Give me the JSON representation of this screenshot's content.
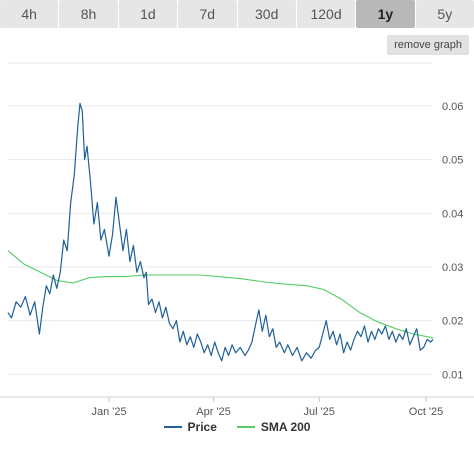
{
  "tabs": [
    {
      "label": "4h",
      "active": false
    },
    {
      "label": "8h",
      "active": false
    },
    {
      "label": "1d",
      "active": false
    },
    {
      "label": "7d",
      "active": false
    },
    {
      "label": "30d",
      "active": false
    },
    {
      "label": "120d",
      "active": false
    },
    {
      "label": "1y",
      "active": true
    },
    {
      "label": "5y",
      "active": false
    }
  ],
  "remove_graph_label": "remove graph",
  "colors": {
    "price": "#1f5f9a",
    "sma": "#55cc66",
    "grid": "#e9e9e9",
    "tick": "#555555"
  },
  "chart_data": {
    "type": "line",
    "title": "",
    "xlabel": "",
    "ylabel": "",
    "xlim": [
      "2024-10-06",
      "2025-10-07"
    ],
    "ylim": [
      0.008,
      0.068
    ],
    "y_ticks": [
      0.01,
      0.02,
      0.03,
      0.04,
      0.05,
      0.06
    ],
    "y_tick_labels": [
      "0.01",
      "0.02",
      "0.03",
      "0.04",
      "0.05",
      "0.06"
    ],
    "x_ticks": [
      "2025-01-01",
      "2025-04-01",
      "2025-07-01",
      "2025-10-01"
    ],
    "x_tick_labels": [
      "Jan '25",
      "Apr '25",
      "Jul '25",
      "Oct '25"
    ],
    "grid": true,
    "legend_position": "bottom-center",
    "series": [
      {
        "name": "Price",
        "points": [
          [
            "2024-10-06",
            0.0215
          ],
          [
            "2024-10-09",
            0.0205
          ],
          [
            "2024-10-13",
            0.0235
          ],
          [
            "2024-10-17",
            0.0225
          ],
          [
            "2024-10-21",
            0.0245
          ],
          [
            "2024-10-25",
            0.021
          ],
          [
            "2024-10-29",
            0.0235
          ],
          [
            "2024-11-02",
            0.0175
          ],
          [
            "2024-11-05",
            0.0225
          ],
          [
            "2024-11-08",
            0.0265
          ],
          [
            "2024-11-11",
            0.025
          ],
          [
            "2024-11-14",
            0.0285
          ],
          [
            "2024-11-17",
            0.026
          ],
          [
            "2024-11-20",
            0.029
          ],
          [
            "2024-11-23",
            0.035
          ],
          [
            "2024-11-26",
            0.033
          ],
          [
            "2024-11-29",
            0.042
          ],
          [
            "2024-12-02",
            0.047
          ],
          [
            "2024-12-05",
            0.056
          ],
          [
            "2024-12-07",
            0.0605
          ],
          [
            "2024-12-09",
            0.059
          ],
          [
            "2024-12-11",
            0.05
          ],
          [
            "2024-12-13",
            0.0525
          ],
          [
            "2024-12-16",
            0.046
          ],
          [
            "2024-12-19",
            0.038
          ],
          [
            "2024-12-22",
            0.042
          ],
          [
            "2024-12-25",
            0.035
          ],
          [
            "2024-12-28",
            0.037
          ],
          [
            "2025-01-01",
            0.032
          ],
          [
            "2025-01-04",
            0.036
          ],
          [
            "2025-01-07",
            0.043
          ],
          [
            "2025-01-10",
            0.038
          ],
          [
            "2025-01-13",
            0.033
          ],
          [
            "2025-01-16",
            0.037
          ],
          [
            "2025-01-19",
            0.031
          ],
          [
            "2025-01-22",
            0.034
          ],
          [
            "2025-01-25",
            0.029
          ],
          [
            "2025-01-28",
            0.031
          ],
          [
            "2025-01-31",
            0.028
          ],
          [
            "2025-02-02",
            0.029
          ],
          [
            "2025-02-04",
            0.023
          ],
          [
            "2025-02-07",
            0.024
          ],
          [
            "2025-02-10",
            0.0215
          ],
          [
            "2025-02-13",
            0.0235
          ],
          [
            "2025-02-16",
            0.0205
          ],
          [
            "2025-02-19",
            0.0225
          ],
          [
            "2025-02-22",
            0.0195
          ],
          [
            "2025-02-25",
            0.0185
          ],
          [
            "2025-02-28",
            0.02
          ],
          [
            "2025-03-03",
            0.016
          ],
          [
            "2025-03-06",
            0.018
          ],
          [
            "2025-03-09",
            0.0155
          ],
          [
            "2025-03-12",
            0.017
          ],
          [
            "2025-03-15",
            0.015
          ],
          [
            "2025-03-18",
            0.0175
          ],
          [
            "2025-03-21",
            0.016
          ],
          [
            "2025-03-24",
            0.014
          ],
          [
            "2025-03-27",
            0.0155
          ],
          [
            "2025-03-30",
            0.0135
          ],
          [
            "2025-04-02",
            0.016
          ],
          [
            "2025-04-05",
            0.014
          ],
          [
            "2025-04-08",
            0.0125
          ],
          [
            "2025-04-11",
            0.015
          ],
          [
            "2025-04-14",
            0.0135
          ],
          [
            "2025-04-17",
            0.0155
          ],
          [
            "2025-04-20",
            0.014
          ],
          [
            "2025-04-24",
            0.015
          ],
          [
            "2025-04-28",
            0.0135
          ],
          [
            "2025-05-01",
            0.0145
          ],
          [
            "2025-05-04",
            0.016
          ],
          [
            "2025-05-07",
            0.019
          ],
          [
            "2025-05-10",
            0.022
          ],
          [
            "2025-05-13",
            0.018
          ],
          [
            "2025-05-16",
            0.021
          ],
          [
            "2025-05-19",
            0.017
          ],
          [
            "2025-05-22",
            0.0185
          ],
          [
            "2025-05-25",
            0.015
          ],
          [
            "2025-05-28",
            0.016
          ],
          [
            "2025-06-01",
            0.014
          ],
          [
            "2025-06-04",
            0.0155
          ],
          [
            "2025-06-08",
            0.0135
          ],
          [
            "2025-06-12",
            0.015
          ],
          [
            "2025-06-16",
            0.0125
          ],
          [
            "2025-06-20",
            0.014
          ],
          [
            "2025-06-24",
            0.013
          ],
          [
            "2025-06-28",
            0.0145
          ],
          [
            "2025-07-01",
            0.015
          ],
          [
            "2025-07-04",
            0.0175
          ],
          [
            "2025-07-07",
            0.02
          ],
          [
            "2025-07-10",
            0.0165
          ],
          [
            "2025-07-13",
            0.018
          ],
          [
            "2025-07-16",
            0.0155
          ],
          [
            "2025-07-19",
            0.0175
          ],
          [
            "2025-07-22",
            0.014
          ],
          [
            "2025-07-25",
            0.016
          ],
          [
            "2025-07-28",
            0.0145
          ],
          [
            "2025-07-31",
            0.0165
          ],
          [
            "2025-08-03",
            0.018
          ],
          [
            "2025-08-06",
            0.017
          ],
          [
            "2025-08-09",
            0.019
          ],
          [
            "2025-08-12",
            0.016
          ],
          [
            "2025-08-15",
            0.018
          ],
          [
            "2025-08-18",
            0.0165
          ],
          [
            "2025-08-21",
            0.0185
          ],
          [
            "2025-08-24",
            0.0175
          ],
          [
            "2025-08-27",
            0.019
          ],
          [
            "2025-08-30",
            0.0165
          ],
          [
            "2025-09-02",
            0.018
          ],
          [
            "2025-09-05",
            0.016
          ],
          [
            "2025-09-08",
            0.0175
          ],
          [
            "2025-09-11",
            0.0165
          ],
          [
            "2025-09-14",
            0.0185
          ],
          [
            "2025-09-17",
            0.0155
          ],
          [
            "2025-09-20",
            0.017
          ],
          [
            "2025-09-23",
            0.0185
          ],
          [
            "2025-09-26",
            0.0145
          ],
          [
            "2025-09-29",
            0.015
          ],
          [
            "2025-10-02",
            0.0165
          ],
          [
            "2025-10-05",
            0.016
          ],
          [
            "2025-10-07",
            0.0165
          ]
        ]
      },
      {
        "name": "SMA 200",
        "points": [
          [
            "2024-10-06",
            0.033
          ],
          [
            "2024-10-20",
            0.0305
          ],
          [
            "2024-11-03",
            0.029
          ],
          [
            "2024-11-17",
            0.0275
          ],
          [
            "2024-12-01",
            0.027
          ],
          [
            "2024-12-15",
            0.028
          ],
          [
            "2024-12-29",
            0.0282
          ],
          [
            "2025-01-15",
            0.0282
          ],
          [
            "2025-02-01",
            0.0285
          ],
          [
            "2025-02-15",
            0.0285
          ],
          [
            "2025-03-01",
            0.0285
          ],
          [
            "2025-03-20",
            0.0285
          ],
          [
            "2025-04-05",
            0.0282
          ],
          [
            "2025-04-25",
            0.0278
          ],
          [
            "2025-05-15",
            0.0272
          ],
          [
            "2025-06-01",
            0.0268
          ],
          [
            "2025-06-20",
            0.0265
          ],
          [
            "2025-07-05",
            0.0258
          ],
          [
            "2025-07-20",
            0.024
          ],
          [
            "2025-08-05",
            0.0215
          ],
          [
            "2025-08-20",
            0.0198
          ],
          [
            "2025-09-05",
            0.0185
          ],
          [
            "2025-09-20",
            0.0175
          ],
          [
            "2025-10-07",
            0.0168
          ]
        ]
      }
    ]
  }
}
